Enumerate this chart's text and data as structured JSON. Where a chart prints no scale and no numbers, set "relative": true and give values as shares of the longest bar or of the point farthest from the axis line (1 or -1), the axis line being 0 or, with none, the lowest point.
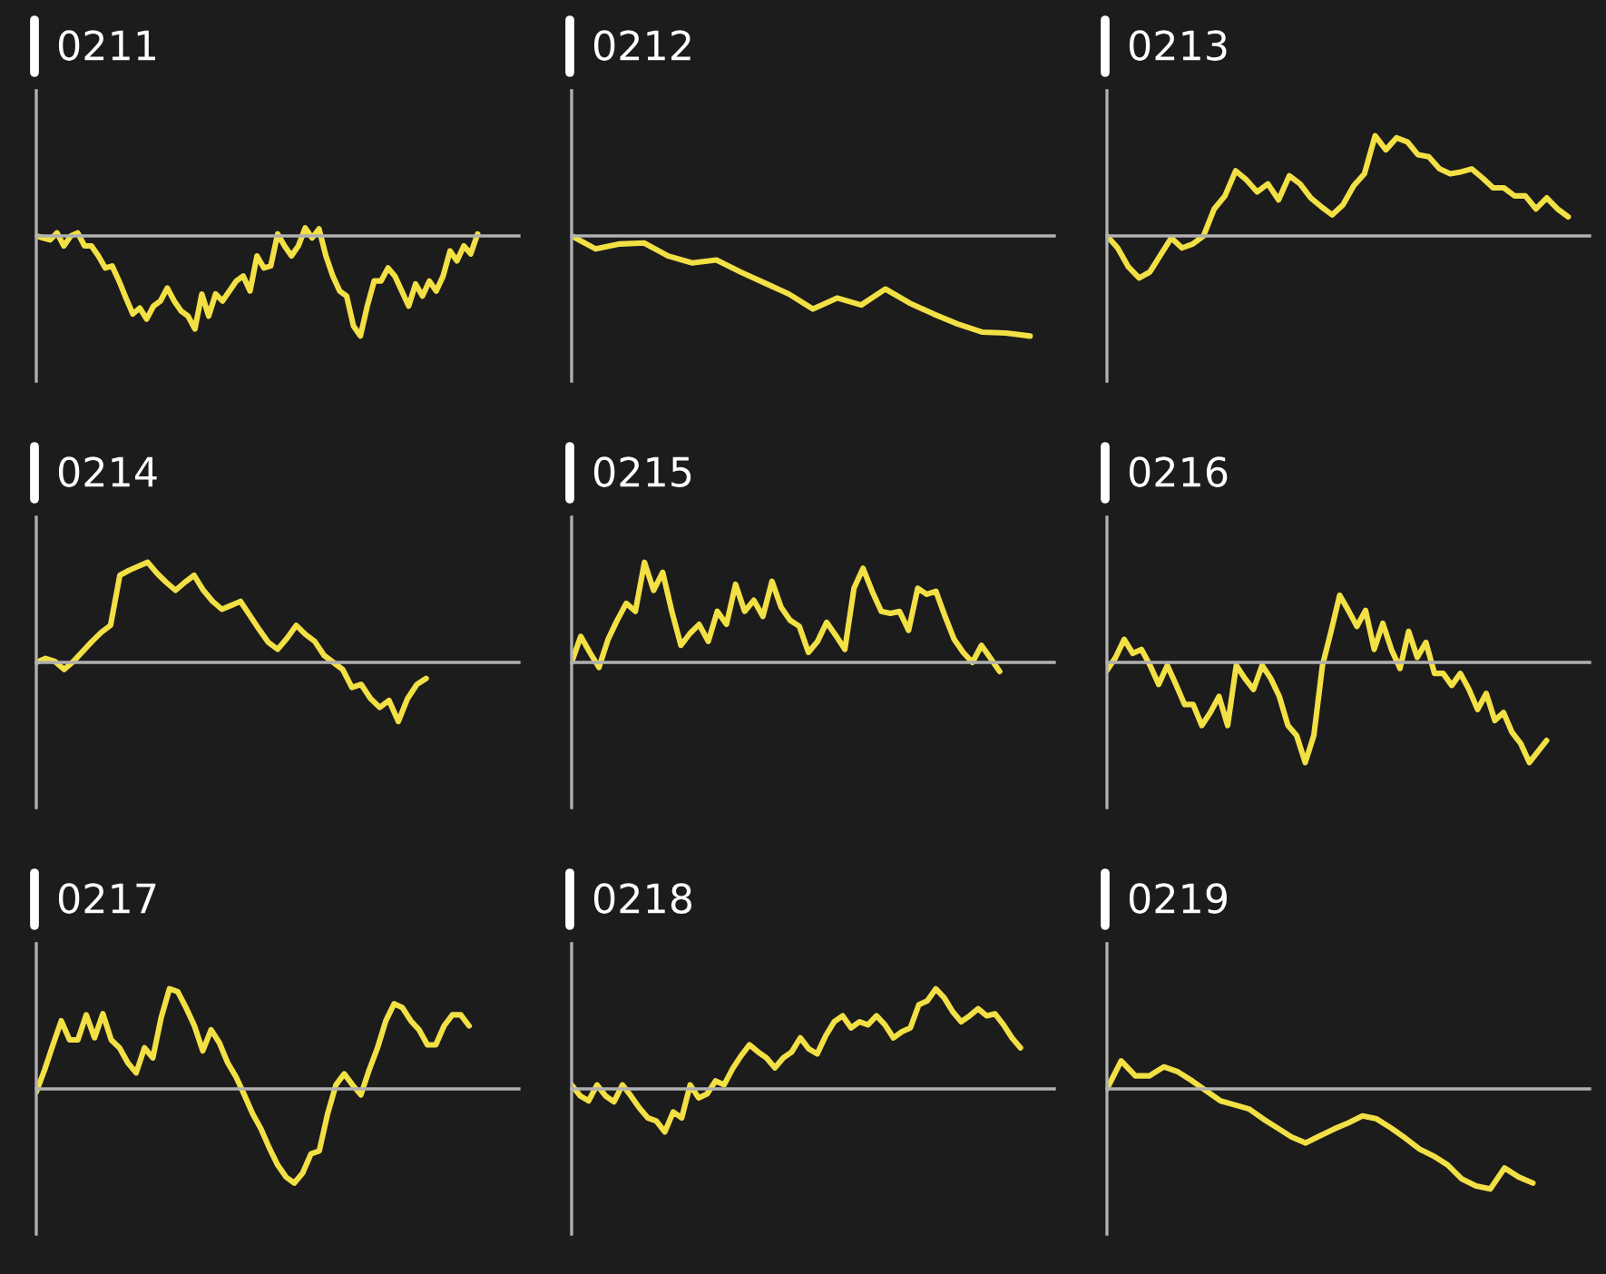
{
  "chart_data": [
    {
      "type": "line",
      "title": "0211",
      "relative": true,
      "categories": [
        null,
        null,
        null,
        null,
        null,
        null,
        null,
        null,
        null,
        null,
        null,
        null,
        null,
        null,
        null,
        null,
        null,
        null,
        null,
        null,
        null,
        null,
        null,
        null,
        null,
        null,
        null,
        null,
        null,
        null,
        null,
        null,
        null,
        null,
        null,
        null,
        null,
        null,
        null,
        null,
        null,
        null,
        null,
        null,
        null,
        null,
        null,
        null,
        null,
        null,
        null,
        null,
        null,
        null,
        null,
        null,
        null,
        null,
        null,
        null,
        null,
        null,
        null,
        null,
        null,
        null,
        null,
        null,
        null,
        null,
        null
      ],
      "series": [
        {
          "color": "#f2e045",
          "values": [
            0,
            -0.02,
            -0.04,
            0.03,
            -0.1,
            0,
            0.03,
            -0.1,
            -0.1,
            -0.2,
            -0.32,
            -0.3,
            -0.45,
            -0.62,
            -0.78,
            -0.72,
            -0.83,
            -0.7,
            -0.65,
            -0.52,
            -0.65,
            -0.75,
            -0.8,
            -0.93,
            -0.58,
            -0.8,
            -0.58,
            -0.65,
            -0.55,
            -0.45,
            -0.4,
            -0.55,
            -0.2,
            -0.32,
            -0.3,
            0.02,
            -0.1,
            -0.2,
            -0.1,
            0.08,
            -0.02,
            0.07,
            -0.2,
            -0.4,
            -0.55,
            -0.6,
            -0.9,
            -1,
            -0.7,
            -0.45,
            -0.45,
            -0.32,
            -0.4,
            -0.55,
            -0.7,
            -0.48,
            -0.6,
            -0.45,
            -0.55,
            -0.4,
            -0.15,
            -0.25,
            -0.1,
            -0.18,
            0.02,
            null,
            null,
            null,
            null,
            null,
            null
          ]
        }
      ]
    },
    {
      "type": "line",
      "title": "0212",
      "relative": true,
      "categories": [
        null,
        null,
        null,
        null,
        null,
        null,
        null,
        null,
        null,
        null,
        null,
        null,
        null,
        null,
        null,
        null,
        null,
        null,
        null,
        null,
        null
      ],
      "series": [
        {
          "color": "#f2e045",
          "values": [
            0,
            -0.13,
            -0.08,
            -0.07,
            -0.2,
            -0.27,
            -0.24,
            -0.36,
            -0.47,
            -0.58,
            -0.73,
            -0.62,
            -0.69,
            -0.53,
            -0.67,
            -0.78,
            -0.88,
            -0.96,
            -0.97,
            -1,
            null
          ]
        }
      ]
    },
    {
      "type": "line",
      "title": "0213",
      "relative": true,
      "categories": [
        null,
        null,
        null,
        null,
        null,
        null,
        null,
        null,
        null,
        null,
        null,
        null,
        null,
        null,
        null,
        null,
        null,
        null,
        null,
        null,
        null,
        null,
        null,
        null,
        null,
        null,
        null,
        null,
        null,
        null,
        null,
        null,
        null,
        null,
        null,
        null,
        null,
        null,
        null,
        null,
        null,
        null,
        null,
        null,
        null,
        null
      ],
      "series": [
        {
          "color": "#f2e045",
          "values": [
            0,
            -0.12,
            -0.31,
            -0.42,
            -0.36,
            -0.19,
            -0.02,
            -0.12,
            -0.08,
            0,
            0.27,
            0.4,
            0.65,
            0.56,
            0.44,
            0.52,
            0.36,
            0.6,
            0.52,
            0.38,
            0.29,
            0.21,
            0.31,
            0.5,
            0.62,
            1,
            0.86,
            0.98,
            0.94,
            0.81,
            0.79,
            0.67,
            0.62,
            0.64,
            0.67,
            0.58,
            0.48,
            0.48,
            0.4,
            0.4,
            0.27,
            0.38,
            0.27,
            0.19,
            null,
            null
          ]
        }
      ]
    },
    {
      "type": "line",
      "title": "0214",
      "relative": true,
      "categories": [
        null,
        null,
        null,
        null,
        null,
        null,
        null,
        null,
        null,
        null,
        null,
        null,
        null,
        null,
        null,
        null,
        null,
        null,
        null,
        null,
        null,
        null,
        null,
        null,
        null,
        null,
        null,
        null,
        null,
        null,
        null,
        null,
        null,
        null,
        null,
        null,
        null,
        null,
        null,
        null,
        null,
        null,
        null,
        null,
        null,
        null,
        null,
        null,
        null,
        null,
        null,
        null,
        null
      ],
      "series": [
        {
          "color": "#f2e045",
          "values": [
            0,
            0.04,
            0.01,
            -0.07,
            0.01,
            0.11,
            0.21,
            0.3,
            0.37,
            0.87,
            0.92,
            0.96,
            1,
            0.89,
            0.8,
            0.72,
            0.8,
            0.87,
            0.72,
            0.61,
            0.53,
            0.57,
            0.61,
            0.47,
            0.33,
            0.2,
            0.13,
            0.24,
            0.37,
            0.28,
            0.21,
            0.07,
            0,
            -0.07,
            -0.25,
            -0.22,
            -0.36,
            -0.45,
            -0.38,
            -0.59,
            -0.36,
            -0.22,
            -0.16,
            null,
            null,
            null,
            null,
            null,
            null,
            null,
            null,
            null,
            null
          ]
        }
      ]
    },
    {
      "type": "line",
      "title": "0215",
      "relative": true,
      "categories": [
        null,
        null,
        null,
        null,
        null,
        null,
        null,
        null,
        null,
        null,
        null,
        null,
        null,
        null,
        null,
        null,
        null,
        null,
        null,
        null,
        null,
        null,
        null,
        null,
        null,
        null,
        null,
        null,
        null,
        null,
        null,
        null,
        null,
        null,
        null,
        null,
        null,
        null,
        null,
        null,
        null,
        null,
        null,
        null,
        null,
        null,
        null,
        null,
        null,
        null,
        null,
        null,
        null,
        null
      ],
      "series": [
        {
          "color": "#f2e045",
          "values": [
            0,
            0.26,
            0.1,
            -0.05,
            0.23,
            0.42,
            0.59,
            0.51,
            1,
            0.72,
            0.9,
            0.51,
            0.17,
            0.29,
            0.38,
            0.21,
            0.51,
            0.38,
            0.78,
            0.51,
            0.62,
            0.46,
            0.81,
            0.55,
            0.42,
            0.36,
            0.1,
            0.21,
            0.4,
            0.27,
            0.13,
            0.74,
            0.94,
            0.71,
            0.51,
            0.49,
            0.51,
            0.32,
            0.74,
            0.68,
            0.71,
            0.46,
            0.23,
            0.1,
            0,
            0.17,
            0.04,
            -0.09,
            null,
            null,
            null,
            null,
            null,
            null
          ]
        }
      ]
    },
    {
      "type": "line",
      "title": "0216",
      "relative": true,
      "categories": [
        null,
        null,
        null,
        null,
        null,
        null,
        null,
        null,
        null,
        null,
        null,
        null,
        null,
        null,
        null,
        null,
        null,
        null,
        null,
        null,
        null,
        null,
        null,
        null,
        null,
        null,
        null,
        null,
        null,
        null,
        null,
        null,
        null,
        null,
        null,
        null,
        null,
        null,
        null,
        null,
        null,
        null,
        null,
        null,
        null,
        null,
        null,
        null,
        null,
        null,
        null,
        null,
        null,
        null,
        null,
        null,
        null
      ],
      "series": [
        {
          "color": "#f2e045",
          "values": [
            -0.08,
            0.05,
            0.23,
            0.09,
            0.13,
            -0.03,
            -0.22,
            -0.03,
            -0.22,
            -0.42,
            -0.42,
            -0.63,
            -0.5,
            -0.34,
            -0.63,
            -0.03,
            -0.16,
            -0.27,
            -0.03,
            -0.16,
            -0.34,
            -0.63,
            -0.73,
            -1,
            -0.73,
            -0.03,
            0.31,
            0.67,
            0.52,
            0.36,
            0.52,
            0.13,
            0.39,
            0.13,
            -0.06,
            0.31,
            0.05,
            0.2,
            -0.11,
            -0.11,
            -0.23,
            -0.11,
            -0.27,
            -0.47,
            -0.31,
            -0.58,
            -0.5,
            -0.7,
            -0.81,
            -1,
            -0.89,
            -0.78,
            null,
            null,
            null,
            null,
            null
          ]
        }
      ]
    },
    {
      "type": "line",
      "title": "0217",
      "relative": true,
      "categories": [
        null,
        null,
        null,
        null,
        null,
        null,
        null,
        null,
        null,
        null,
        null,
        null,
        null,
        null,
        null,
        null,
        null,
        null,
        null,
        null,
        null,
        null,
        null,
        null,
        null,
        null,
        null,
        null,
        null,
        null,
        null,
        null,
        null,
        null,
        null,
        null,
        null,
        null,
        null,
        null,
        null,
        null,
        null,
        null,
        null,
        null,
        null,
        null,
        null,
        null,
        null,
        null,
        null,
        null,
        null,
        null,
        null,
        null,
        null
      ],
      "series": [
        {
          "color": "#f2e045",
          "values": [
            -0.03,
            0.19,
            0.44,
            0.68,
            0.49,
            0.49,
            0.74,
            0.51,
            0.75,
            0.49,
            0.41,
            0.26,
            0.16,
            0.41,
            0.31,
            0.71,
            1,
            0.97,
            0.81,
            0.63,
            0.38,
            0.59,
            0.46,
            0.26,
            0.12,
            -0.06,
            -0.25,
            -0.4,
            -0.59,
            -0.76,
            -0.88,
            -0.94,
            -0.84,
            -0.65,
            -0.62,
            -0.25,
            0.04,
            0.15,
            0.04,
            -0.06,
            0.19,
            0.41,
            0.68,
            0.85,
            0.81,
            0.68,
            0.59,
            0.44,
            0.44,
            0.63,
            0.74,
            0.74,
            0.63,
            null,
            null,
            null,
            null,
            null,
            null
          ]
        }
      ]
    },
    {
      "type": "line",
      "title": "0218",
      "relative": true,
      "categories": [
        null,
        null,
        null,
        null,
        null,
        null,
        null,
        null,
        null,
        null,
        null,
        null,
        null,
        null,
        null,
        null,
        null,
        null,
        null,
        null,
        null,
        null,
        null,
        null,
        null,
        null,
        null,
        null,
        null,
        null,
        null,
        null,
        null,
        null,
        null,
        null,
        null,
        null,
        null,
        null,
        null,
        null,
        null,
        null,
        null,
        null,
        null,
        null,
        null,
        null,
        null,
        null,
        null,
        null,
        null,
        null,
        null,
        null
      ],
      "series": [
        {
          "color": "#f2e045",
          "values": [
            0.04,
            -0.07,
            -0.12,
            0.04,
            -0.07,
            -0.13,
            0.04,
            -0.07,
            -0.19,
            -0.29,
            -0.32,
            -0.43,
            -0.23,
            -0.29,
            0.04,
            -0.09,
            -0.05,
            0.08,
            0.04,
            0.2,
            0.33,
            0.44,
            0.37,
            0.31,
            0.21,
            0.31,
            0.37,
            0.51,
            0.4,
            0.35,
            0.53,
            0.67,
            0.73,
            0.61,
            0.67,
            0.64,
            0.73,
            0.64,
            0.51,
            0.57,
            0.61,
            0.84,
            0.88,
            1,
            0.91,
            0.77,
            0.67,
            0.73,
            0.8,
            0.73,
            0.75,
            0.64,
            0.51,
            0.41,
            null,
            null,
            null,
            null
          ]
        }
      ]
    },
    {
      "type": "line",
      "title": "0219",
      "relative": true,
      "categories": [
        null,
        null,
        null,
        null,
        null,
        null,
        null,
        null,
        null,
        null,
        null,
        null,
        null,
        null,
        null,
        null,
        null,
        null,
        null,
        null,
        null,
        null,
        null,
        null,
        null,
        null,
        null,
        null,
        null,
        null,
        null,
        null,
        null,
        null,
        null
      ],
      "series": [
        {
          "color": "#f2e045",
          "values": [
            0,
            0.28,
            0.13,
            0.13,
            0.22,
            0.17,
            0.08,
            -0.02,
            -0.12,
            -0.16,
            -0.2,
            -0.3,
            -0.39,
            -0.48,
            -0.54,
            -0.47,
            -0.4,
            -0.34,
            -0.27,
            -0.3,
            -0.39,
            -0.49,
            -0.6,
            -0.67,
            -0.76,
            -0.9,
            -0.97,
            -1,
            -0.79,
            -0.88,
            -0.94,
            null,
            null,
            null,
            null
          ]
        }
      ]
    }
  ]
}
